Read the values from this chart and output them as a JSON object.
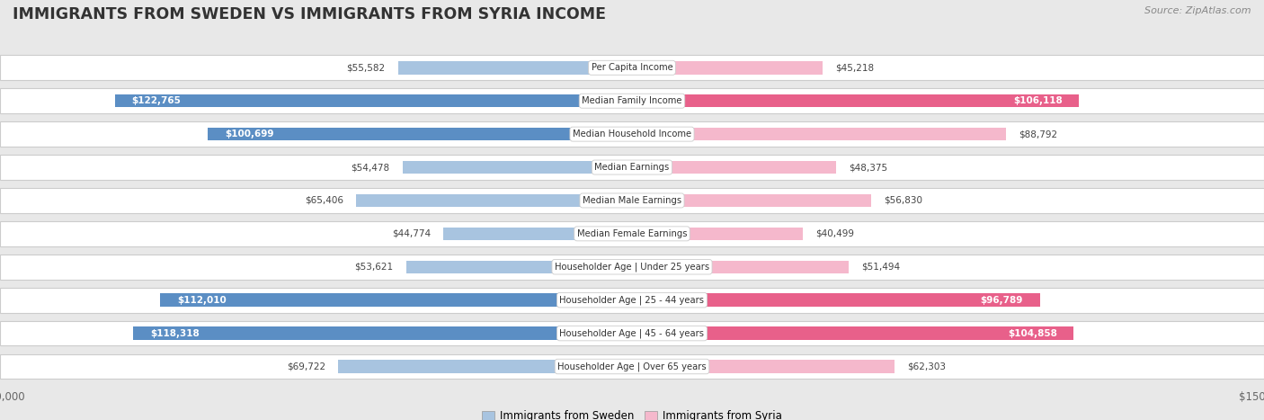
{
  "title": "IMMIGRANTS FROM SWEDEN VS IMMIGRANTS FROM SYRIA INCOME",
  "source": "Source: ZipAtlas.com",
  "categories": [
    "Per Capita Income",
    "Median Family Income",
    "Median Household Income",
    "Median Earnings",
    "Median Male Earnings",
    "Median Female Earnings",
    "Householder Age | Under 25 years",
    "Householder Age | 25 - 44 years",
    "Householder Age | 45 - 64 years",
    "Householder Age | Over 65 years"
  ],
  "sweden_values": [
    55582,
    122765,
    100699,
    54478,
    65406,
    44774,
    53621,
    112010,
    118318,
    69722
  ],
  "syria_values": [
    45218,
    106118,
    88792,
    48375,
    56830,
    40499,
    51494,
    96789,
    104858,
    62303
  ],
  "sweden_color_light": "#a8c4e0",
  "sweden_color_dark": "#5b8ec4",
  "syria_color_light": "#f5b8cc",
  "syria_color_dark": "#e8608a",
  "max_value": 150000,
  "bg_color": "#e8e8e8",
  "row_bg_odd": "#f5f5f5",
  "row_bg_even": "#ebebeb",
  "label_fontsize": 8.0,
  "title_fontsize": 12.5,
  "legend_sweden": "Immigrants from Sweden",
  "legend_syria": "Immigrants from Syria"
}
